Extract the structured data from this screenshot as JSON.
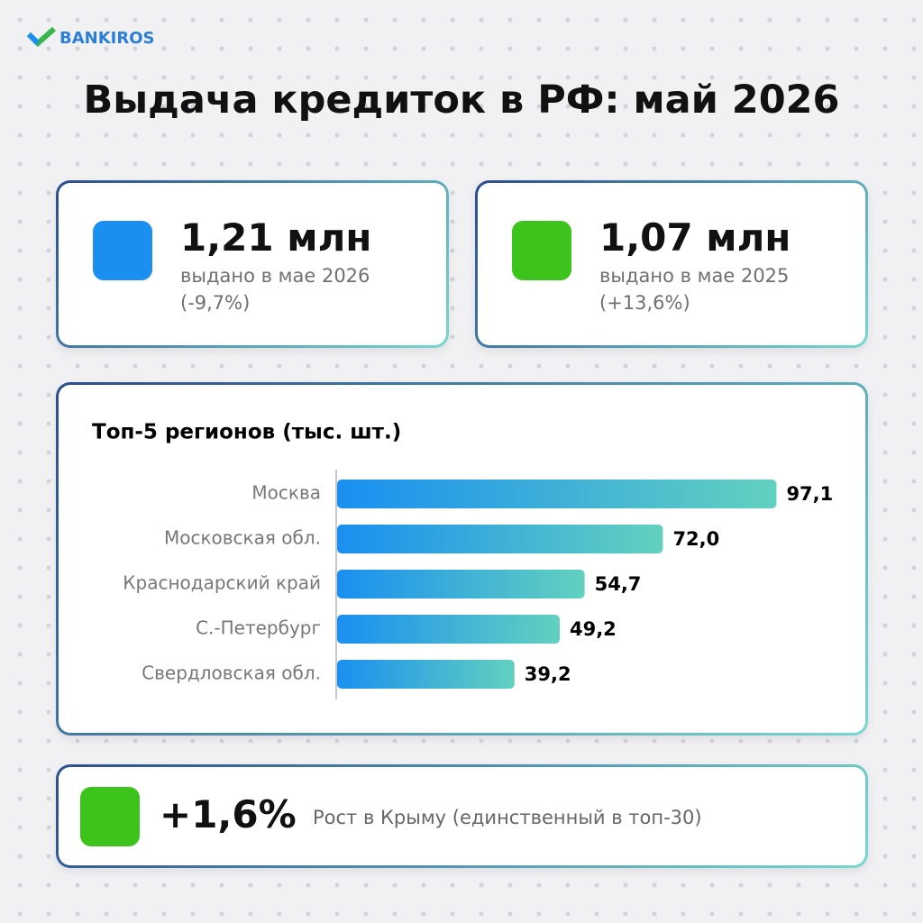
{
  "logo": "BANKIROS",
  "title": "Выдача кредиток в РФ: май 2026",
  "stats": [
    {
      "value": "1,21 млн",
      "description": "выдано в мае 2026",
      "change": "(-9,7%)"
    },
    {
      "value": "1,07 млн",
      "description": "выдано в мае 2025",
      "change": "(+13,6%)"
    }
  ],
  "chart_data": {
    "type": "bar",
    "orientation": "horizontal",
    "title": "Топ-5 регионов (тыс. шт.)",
    "categories": [
      "Москва",
      "Московская обл.",
      "Краснодарский край",
      "С.-Петербург",
      "Свердловская обл."
    ],
    "values": [
      97.1,
      72.0,
      54.7,
      49.2,
      39.2
    ],
    "value_labels": [
      "97,1",
      "72,0",
      "54,7",
      "49,2",
      "39,2"
    ],
    "colors": [
      "#1a8ff0",
      "#62d1bf"
    ]
  },
  "highlight": {
    "value": "+1,6%",
    "text": "Рост в Крыму (единственный в топ-30)"
  }
}
